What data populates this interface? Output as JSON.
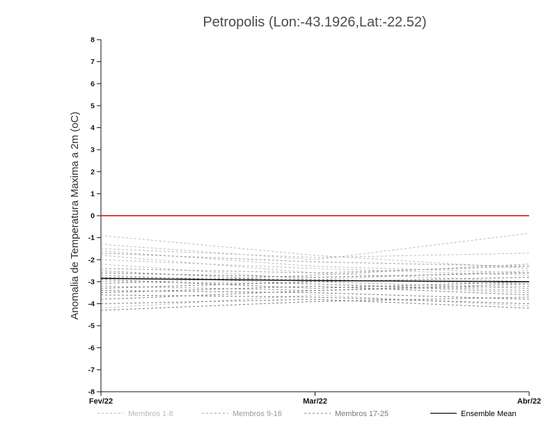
{
  "chart_data": {
    "type": "line",
    "title": "Petropolis (Lon:-43.1926,Lat:-22.52)",
    "ylabel": "Anomalia de Temperatura Maxima a 2m (oC)",
    "xlabel": "",
    "x_categories": [
      "Fev/22",
      "Mar/22",
      "Abr/22"
    ],
    "ylim": [
      -8,
      8
    ],
    "ytick_step": 1,
    "grid": false,
    "legend_position": "bottom",
    "zero_line": {
      "value": 0,
      "color": "#e02020"
    },
    "groups": [
      {
        "name": "Membros 1-8",
        "color": "#b9b9b9",
        "style": "dashed",
        "series": [
          [
            -0.9,
            -1.8,
            -2.4
          ],
          [
            -1.3,
            -2.0,
            -0.8
          ],
          [
            -1.5,
            -1.9,
            -1.7
          ],
          [
            -1.6,
            -2.3,
            -2.6
          ],
          [
            -1.8,
            -2.6,
            -3.0
          ],
          [
            -2.0,
            -2.4,
            -2.7
          ],
          [
            -2.2,
            -2.9,
            -2.5
          ],
          [
            -4.2,
            -3.6,
            -4.1
          ]
        ]
      },
      {
        "name": "Membros 9-16",
        "color": "#999999",
        "style": "dashed",
        "series": [
          [
            -2.4,
            -2.6,
            -2.3
          ],
          [
            -2.5,
            -3.0,
            -3.3
          ],
          [
            -2.7,
            -3.1,
            -3.4
          ],
          [
            -2.8,
            -2.9,
            -3.1
          ],
          [
            -3.0,
            -3.1,
            -3.5
          ],
          [
            -3.1,
            -2.7,
            -2.2
          ],
          [
            -3.2,
            -3.4,
            -3.2
          ],
          [
            -1.7,
            -2.1,
            -2.3
          ]
        ]
      },
      {
        "name": "Membros 17-25",
        "color": "#787878",
        "style": "dashed",
        "series": [
          [
            -3.3,
            -3.0,
            -2.8
          ],
          [
            -3.4,
            -3.5,
            -3.8
          ],
          [
            -3.5,
            -3.2,
            -3.6
          ],
          [
            -3.6,
            -3.7,
            -4.0
          ],
          [
            -3.8,
            -3.4,
            -3.1
          ],
          [
            -4.0,
            -3.8,
            -4.2
          ],
          [
            -4.3,
            -3.9,
            -3.7
          ],
          [
            -2.9,
            -3.3,
            -3.0
          ],
          [
            -2.6,
            -2.8,
            -2.6
          ]
        ]
      }
    ],
    "ensemble_mean": {
      "name": "Ensemble Mean",
      "color": "#000000",
      "style": "solid",
      "values": [
        -2.85,
        -2.95,
        -3.0
      ]
    }
  }
}
